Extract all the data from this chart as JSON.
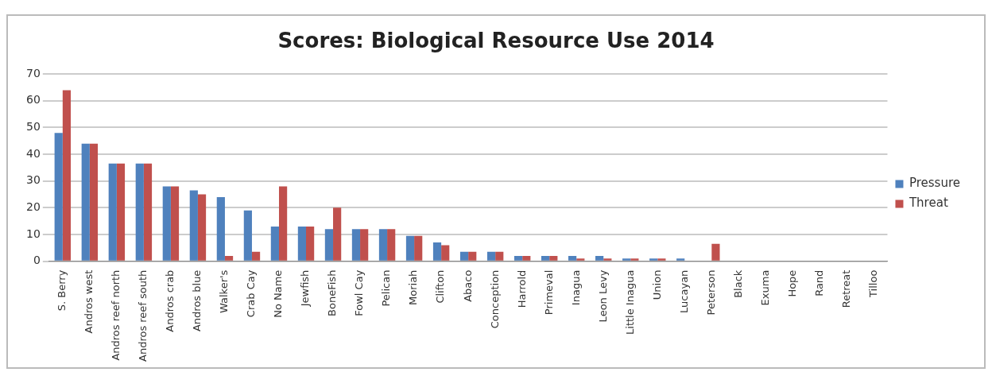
{
  "chart_data": {
    "type": "bar",
    "title": "Scores: Biological Resource Use 2014",
    "categories": [
      "S. Berry",
      "Andros west",
      "Andros reef north",
      "Andros reef south",
      "Andros crab",
      "Andros blue",
      "Walker's",
      "Crab Cay",
      "No Name",
      "Jewfish",
      "BoneFish",
      "Fowl Cay",
      "Pelican",
      "Moriah",
      "Clifton",
      "Abaco",
      "Conception",
      "Harrold",
      "Primeval",
      "Inagua",
      "Leon Levy",
      "Little Inagua",
      "Union",
      "Lucayan",
      "Peterson",
      "Black",
      "Exuma",
      "Hope",
      "Rand",
      "Retreat",
      "Tilloo"
    ],
    "series": [
      {
        "name": "Pressure",
        "color": "#4f81bd",
        "values": [
          48,
          44,
          36.5,
          36.5,
          28,
          26.5,
          24,
          19,
          13,
          13,
          12,
          12,
          12,
          9.5,
          7,
          3.5,
          3.5,
          2,
          2,
          2,
          2,
          1,
          1,
          1,
          0,
          0,
          0,
          0,
          0,
          0,
          0
        ]
      },
      {
        "name": "Threat",
        "color": "#c0504d",
        "values": [
          64,
          44,
          36.5,
          36.5,
          28,
          25,
          2,
          3.5,
          28,
          13,
          20,
          12,
          12,
          9.5,
          6,
          3.5,
          3.5,
          2,
          2,
          1,
          1,
          1,
          1,
          0,
          6.5,
          0,
          0,
          0,
          0,
          0,
          0
        ]
      }
    ],
    "ylim": [
      0,
      70
    ],
    "yticks": [
      0,
      10,
      20,
      30,
      40,
      50,
      60,
      70
    ],
    "grid": "y",
    "legend": "right"
  }
}
